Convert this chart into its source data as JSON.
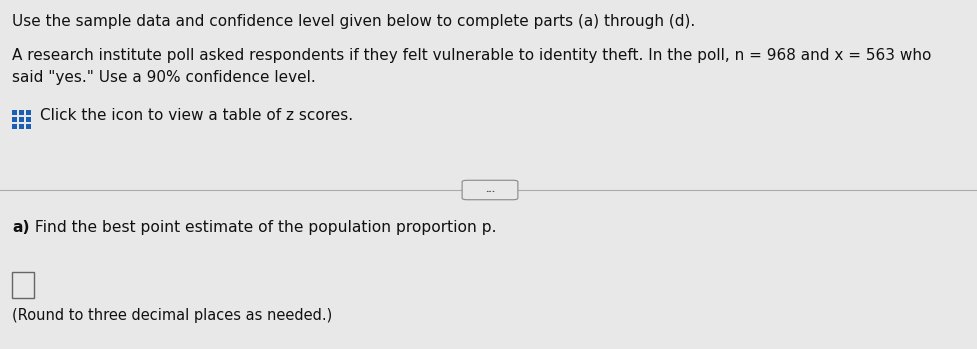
{
  "line1": "Use the sample data and confidence level given below to complete parts (a) through (d).",
  "line2a": "A research institute poll asked respondents if they felt vulnerable to identity theft. In the poll, n = 968 and x = 563 who",
  "line2b": "said \"yes.\" Use a 90% confidence level.",
  "line3": "Click the icon to view a table of z scores.",
  "line4_bold": "a)",
  "line4_rest": " Find the best point estimate of the population proportion p.",
  "line5": "(Round to three decimal places as needed.)",
  "bg_color": "#e8e8e8",
  "text_color": "#111111",
  "divider_color": "#aaaaaa",
  "icon_color": "#1a5fb4",
  "dots_text": "..."
}
